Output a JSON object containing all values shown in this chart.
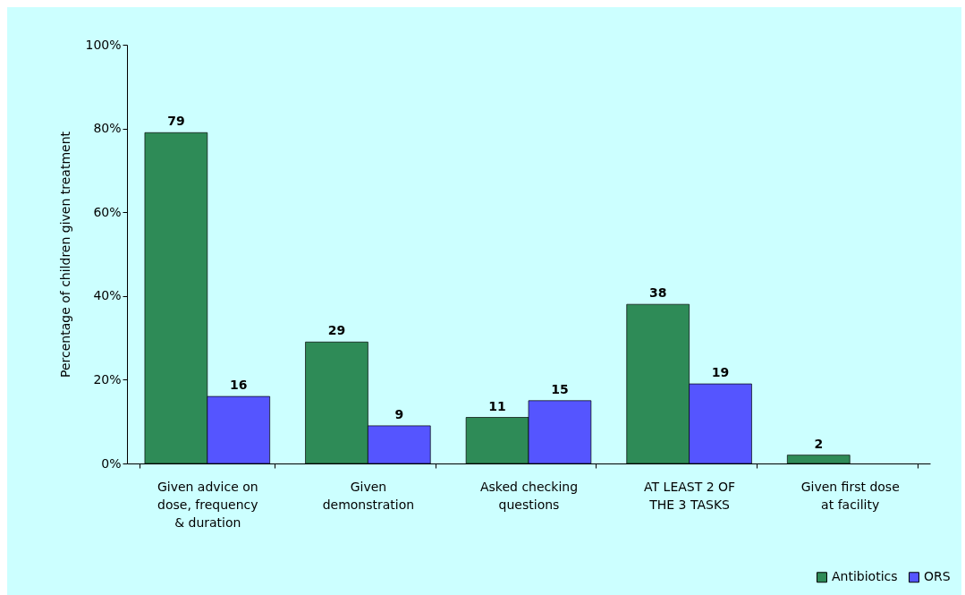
{
  "chart_data": {
    "type": "bar",
    "ylabel": "Percentage of children given treatment",
    "categories": [
      "Given advice on dose, frequency & duration",
      "Given demonstration",
      "Asked checking questions",
      "AT LEAST 2 OF THE 3 TASKS",
      "Given first dose at facility"
    ],
    "series": [
      {
        "name": "Antibiotics",
        "color": "#2e8b57",
        "values": [
          79,
          29,
          11,
          38,
          2
        ]
      },
      {
        "name": "ORS",
        "color": "#5555ff",
        "values": [
          16,
          9,
          15,
          19,
          null
        ]
      }
    ],
    "ylim": [
      0,
      100
    ],
    "yticks": [
      {
        "value": 0,
        "label": "0%"
      },
      {
        "value": 20,
        "label": "20%"
      },
      {
        "value": 40,
        "label": "40%"
      },
      {
        "value": 60,
        "label": "60%"
      },
      {
        "value": 80,
        "label": "80%"
      },
      {
        "value": 100,
        "label": "100%"
      }
    ],
    "data_labels": true,
    "grid": false,
    "legend": "bottom right"
  }
}
